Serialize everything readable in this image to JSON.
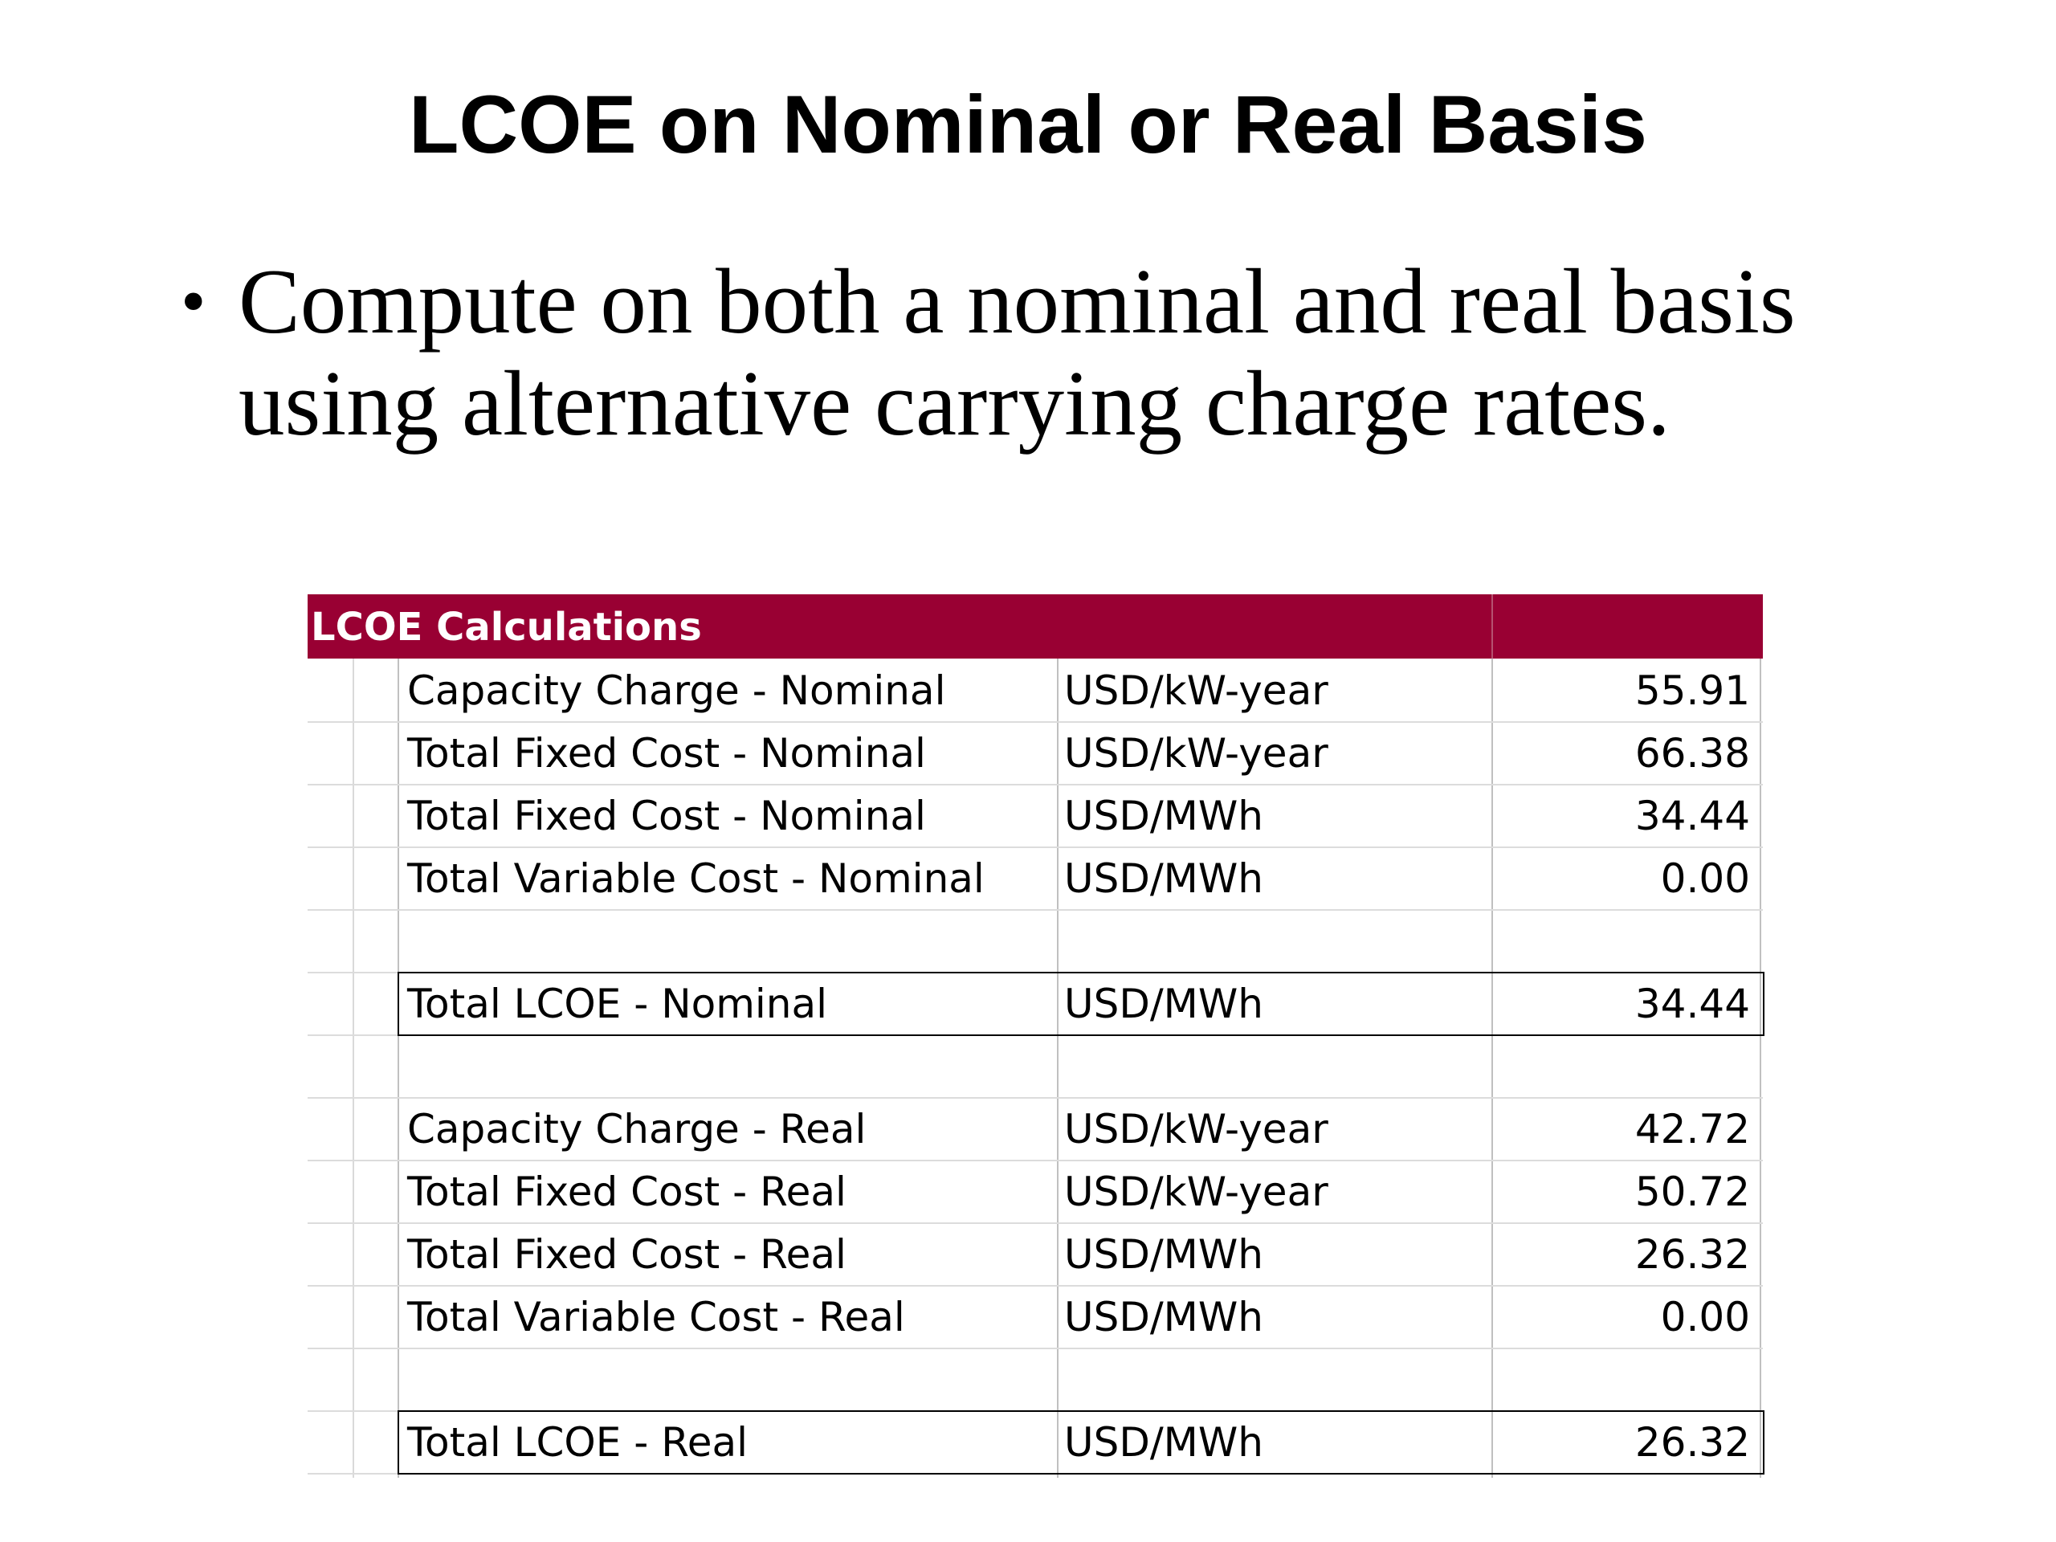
{
  "slide": {
    "title": "LCOE on Nominal or Real Basis",
    "bullet_marker": "•",
    "bullet_text": "Compute on both a nominal and real basis using alternative carrying charge rates."
  },
  "table": {
    "header": "LCOE Calculations",
    "header_color": "#990033",
    "rows": [
      {
        "label": "Capacity Charge - Nominal",
        "unit": "USD/kW-year",
        "value": "55.91"
      },
      {
        "label": "Total Fixed Cost - Nominal",
        "unit": "USD/kW-year",
        "value": "66.38"
      },
      {
        "label": "Total Fixed Cost - Nominal",
        "unit": "USD/MWh",
        "value": "34.44"
      },
      {
        "label": "Total Variable Cost - Nominal",
        "unit": "USD/MWh",
        "value": "0.00"
      },
      {
        "label": "",
        "unit": "",
        "value": ""
      },
      {
        "label": "Total LCOE - Nominal",
        "unit": "USD/MWh",
        "value": "34.44"
      },
      {
        "label": "",
        "unit": "",
        "value": ""
      },
      {
        "label": "Capacity Charge - Real",
        "unit": "USD/kW-year",
        "value": "42.72"
      },
      {
        "label": "Total Fixed Cost - Real",
        "unit": "USD/kW-year",
        "value": "50.72"
      },
      {
        "label": "Total Fixed Cost - Real",
        "unit": "USD/MWh",
        "value": "26.32"
      },
      {
        "label": "Total Variable Cost - Real",
        "unit": "USD/MWh",
        "value": "0.00"
      },
      {
        "label": "",
        "unit": "",
        "value": ""
      },
      {
        "label": "Total LCOE - Real",
        "unit": "USD/MWh",
        "value": "26.32"
      }
    ]
  }
}
